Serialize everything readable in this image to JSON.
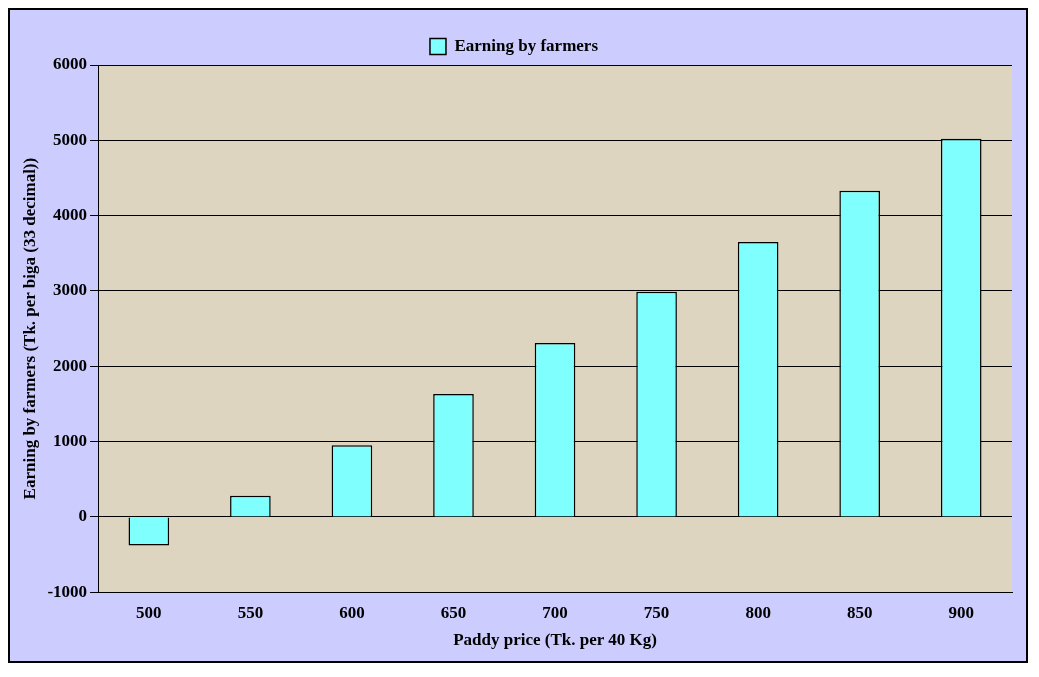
{
  "chart_data": {
    "type": "bar",
    "xlabel": "Paddy price (Tk. per 40 Kg)",
    "ylabel": "Earning by farmers (Tk. per biga (33 decimal))",
    "categories": [
      "500",
      "550",
      "600",
      "650",
      "700",
      "750",
      "800",
      "850",
      "900"
    ],
    "series": [
      {
        "name": "Earning by farmers",
        "color": "#80ffff",
        "values": [
          -380,
          280,
          950,
          1630,
          2310,
          2990,
          3650,
          4330,
          5020
        ]
      }
    ],
    "ylim": [
      -1000,
      6000
    ],
    "yticks": [
      -1000,
      0,
      1000,
      2000,
      3000,
      4000,
      5000,
      6000
    ],
    "grid": "y",
    "legend": "top"
  }
}
